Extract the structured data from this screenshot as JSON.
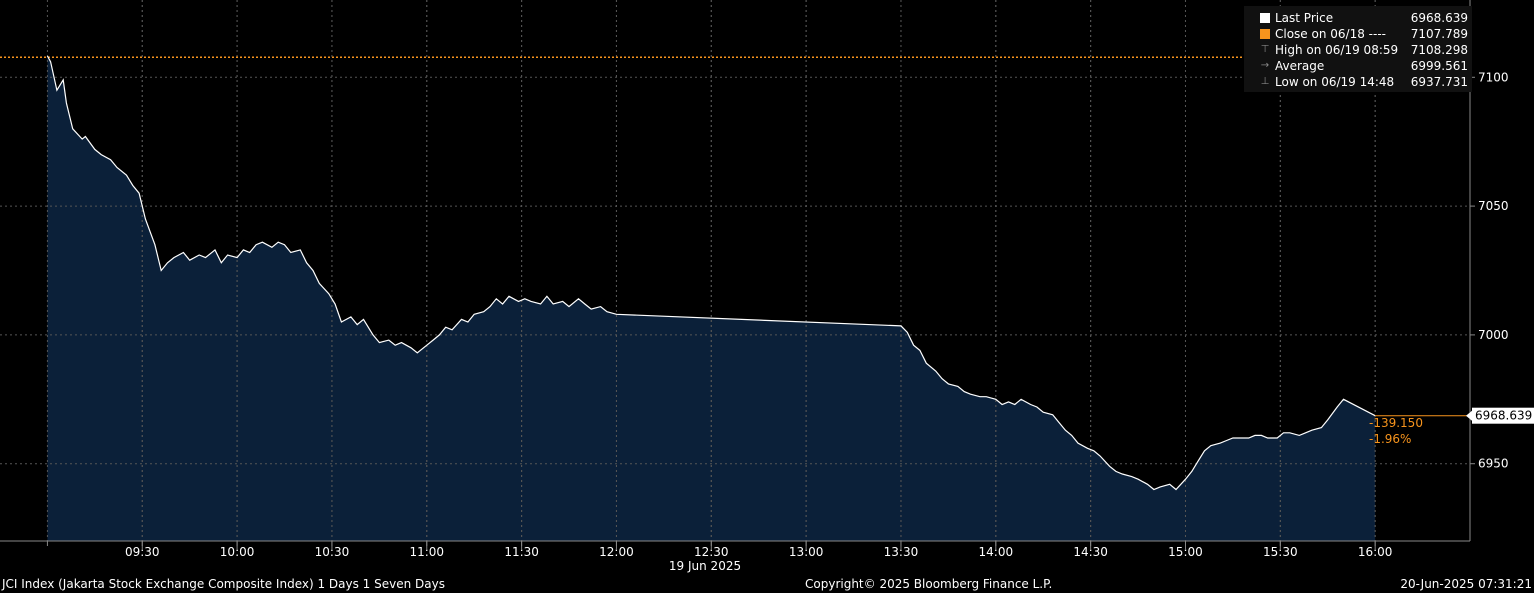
{
  "footer": {
    "left": "JCI Index (Jakarta Stock Exchange Composite Index) 1 Days 1 Seven Days",
    "center": "Copyright© 2025 Bloomberg Finance L.P.",
    "right": "20-Jun-2025 07:31:21"
  },
  "date_label": "19 Jun 2025",
  "legend": [
    {
      "label": "Last Price",
      "value": "6968.639",
      "icon": "white-square-icon"
    },
    {
      "label": "Close on 06/18 ----",
      "value": "7107.789",
      "icon": "orange-square-icon"
    },
    {
      "label": "High on 06/19 08:59",
      "value": "7108.298",
      "icon": "high-marker-icon"
    },
    {
      "label": "Average",
      "value": "6999.561",
      "icon": "average-marker-icon"
    },
    {
      "label": "Low on 06/19 14:48",
      "value": "6937.731",
      "icon": "low-marker-icon"
    }
  ],
  "last_price_tag": "6968.639",
  "change": {
    "abs": "-139.150",
    "pct": "-1.96%"
  },
  "colors": {
    "line": "#ffffff",
    "fill": "#0b2039",
    "close": "#f7941d",
    "grid": "#555555",
    "background": "#000000"
  },
  "chart_data": {
    "type": "area",
    "ylim": [
      6920,
      7130
    ],
    "yticks": [
      6950,
      7000,
      7050,
      7100
    ],
    "xlim": [
      "08:45",
      "16:30"
    ],
    "xticks": [
      "09:30",
      "10:00",
      "10:30",
      "11:00",
      "11:30",
      "12:00",
      "12:30",
      "13:00",
      "13:30",
      "14:00",
      "14:30",
      "15:00",
      "15:30",
      "16:00"
    ],
    "previous_close": 7107.789,
    "last_price": 6968.639,
    "series": [
      {
        "name": "Last Price",
        "x": [
          "09:00",
          "09:01",
          "09:03",
          "09:05",
          "09:06",
          "09:08",
          "09:11",
          "09:12",
          "09:15",
          "09:17",
          "09:20",
          "09:22",
          "09:25",
          "09:27",
          "09:29",
          "09:31",
          "09:34",
          "09:36",
          "09:38",
          "09:40",
          "09:43",
          "09:45",
          "09:48",
          "09:50",
          "09:53",
          "09:55",
          "09:57",
          "10:00",
          "10:02",
          "10:04",
          "10:06",
          "10:08",
          "10:11",
          "10:13",
          "10:15",
          "10:17",
          "10:20",
          "10:22",
          "10:24",
          "10:26",
          "10:29",
          "10:31",
          "10:33",
          "10:36",
          "10:38",
          "10:40",
          "10:43",
          "10:45",
          "10:48",
          "10:50",
          "10:52",
          "10:55",
          "10:57",
          "11:00",
          "11:02",
          "11:04",
          "11:06",
          "11:08",
          "11:11",
          "11:13",
          "11:15",
          "11:18",
          "11:20",
          "11:22",
          "11:24",
          "11:26",
          "11:29",
          "11:31",
          "11:33",
          "11:36",
          "11:38",
          "11:40",
          "11:43",
          "11:45",
          "11:48",
          "11:50",
          "11:52",
          "11:55",
          "11:57",
          "12:00",
          "13:30",
          "13:32",
          "13:34",
          "13:36",
          "13:38",
          "13:41",
          "13:43",
          "13:45",
          "13:48",
          "13:50",
          "13:52",
          "13:55",
          "13:57",
          "14:00",
          "14:02",
          "14:04",
          "14:06",
          "14:08",
          "14:11",
          "14:13",
          "14:15",
          "14:18",
          "14:20",
          "14:22",
          "14:24",
          "14:26",
          "14:29",
          "14:31",
          "14:33",
          "14:36",
          "14:38",
          "14:40",
          "14:43",
          "14:45",
          "14:48",
          "14:50",
          "14:52",
          "14:55",
          "14:57",
          "15:00",
          "15:02",
          "15:04",
          "15:06",
          "15:08",
          "15:11",
          "15:13",
          "15:15",
          "15:18",
          "15:20",
          "15:22",
          "15:24",
          "15:26",
          "15:29",
          "15:31",
          "15:33",
          "15:36",
          "15:38",
          "15:40",
          "15:43",
          "15:45",
          "15:48",
          "15:50"
        ],
        "values": [
          7108.3,
          7106,
          7095,
          7099,
          7090,
          7080,
          7076,
          7077,
          7072,
          7070,
          7068,
          7065,
          7062,
          7058,
          7055,
          7045,
          7035,
          7025,
          7028,
          7030,
          7032,
          7029,
          7031,
          7030,
          7033,
          7028,
          7031,
          7030,
          7033,
          7032,
          7035,
          7036,
          7034,
          7036,
          7035,
          7032,
          7033,
          7028,
          7025,
          7020,
          7016,
          7012,
          7005,
          7007,
          7004,
          7006,
          7000,
          6997,
          6998,
          6996,
          6997,
          6995,
          6993,
          6996,
          6998,
          7000,
          7003,
          7002,
          7006,
          7005,
          7008,
          7009,
          7011,
          7014,
          7012,
          7015,
          7013,
          7014,
          7013,
          7012,
          7015,
          7012,
          7013,
          7011,
          7014,
          7012,
          7010,
          7011,
          7009,
          7008,
          7003.5,
          7001,
          6996,
          6994,
          6989,
          6986,
          6983,
          6981,
          6980,
          6978,
          6977,
          6976,
          6976,
          6975,
          6973,
          6974,
          6973,
          6975,
          6973,
          6972,
          6970,
          6969,
          6966,
          6963,
          6961,
          6958,
          6956,
          6955,
          6953,
          6949,
          6947,
          6946,
          6945,
          6944,
          6942,
          6940,
          6941,
          6942,
          6940,
          6944,
          6947,
          6951,
          6955,
          6957,
          6958,
          6959,
          6960,
          6960,
          6960,
          6961,
          6961,
          6960,
          6960,
          6962,
          6962,
          6961,
          6962,
          6963,
          6964,
          6967,
          6972,
          6975
        ]
      }
    ]
  }
}
